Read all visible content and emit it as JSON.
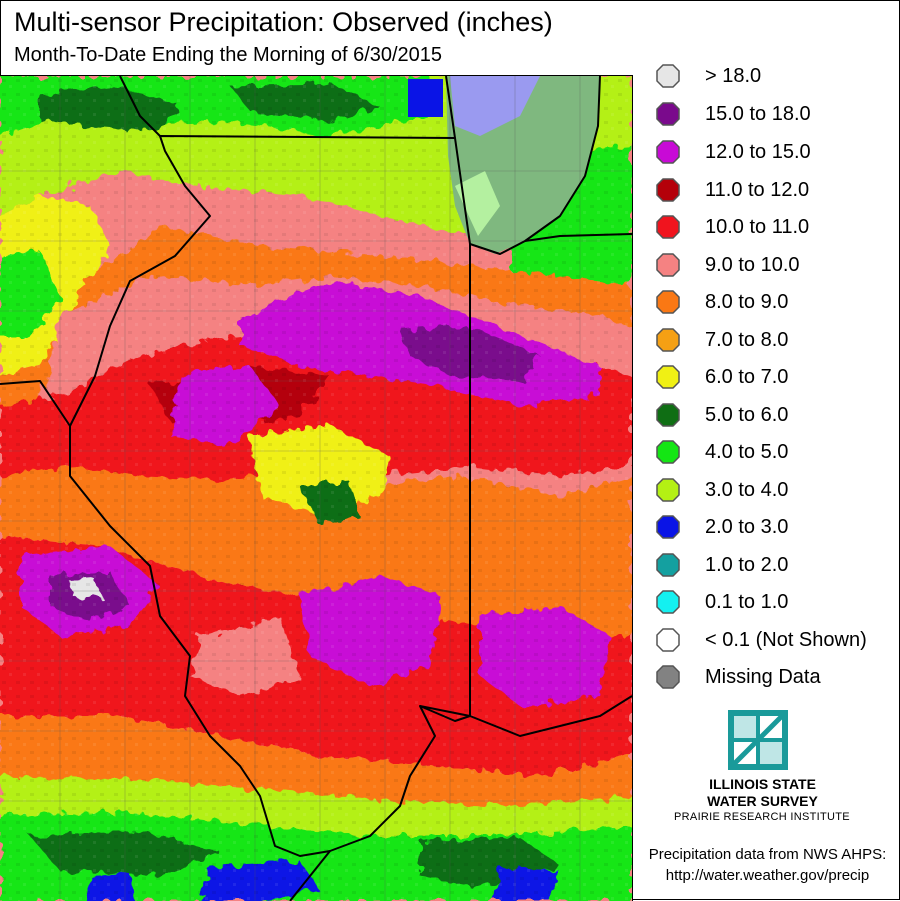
{
  "title": "Multi-sensor Precipitation:  Observed (inches)",
  "subtitle": "Month-To-Date Ending the Morning of 6/30/2015",
  "legend": [
    {
      "label": "> 18.0",
      "color": "#e6e6e6"
    },
    {
      "label": "15.0 to 18.0",
      "color": "#7a0a8c"
    },
    {
      "label": "12.0 to 15.0",
      "color": "#c80ad6"
    },
    {
      "label": "11.0 to 12.0",
      "color": "#b4000a"
    },
    {
      "label": "10.0 to 11.0",
      "color": "#f0141e"
    },
    {
      "label": "9.0 to 10.0",
      "color": "#f58282"
    },
    {
      "label": "8.0 to 9.0",
      "color": "#fa7814"
    },
    {
      "label": "7.0 to 8.0",
      "color": "#f5a014"
    },
    {
      "label": "6.0 to 7.0",
      "color": "#f0f014"
    },
    {
      "label": "5.0 to 6.0",
      "color": "#0f6e14"
    },
    {
      "label": "4.0 to 5.0",
      "color": "#14e614"
    },
    {
      "label": "3.0 to 4.0",
      "color": "#b4f014"
    },
    {
      "label": "2.0 to 3.0",
      "color": "#0a14e6"
    },
    {
      "label": "1.0 to 2.0",
      "color": "#14a0a0"
    },
    {
      "label": "0.1 to 1.0",
      "color": "#14f0f0"
    },
    {
      "label": "< 0.1 (Not Shown)",
      "color": "#ffffff"
    },
    {
      "label": "Missing Data",
      "color": "#828282"
    }
  ],
  "organization": {
    "name_line1": "ILLINOIS STATE",
    "name_line2": "WATER SURVEY",
    "subtitle": "PRAIRIE RESEARCH INSTITUTE"
  },
  "source": {
    "line1": "Precipitation data from NWS AHPS:",
    "line2": "http://water.weather.gov/precip"
  }
}
